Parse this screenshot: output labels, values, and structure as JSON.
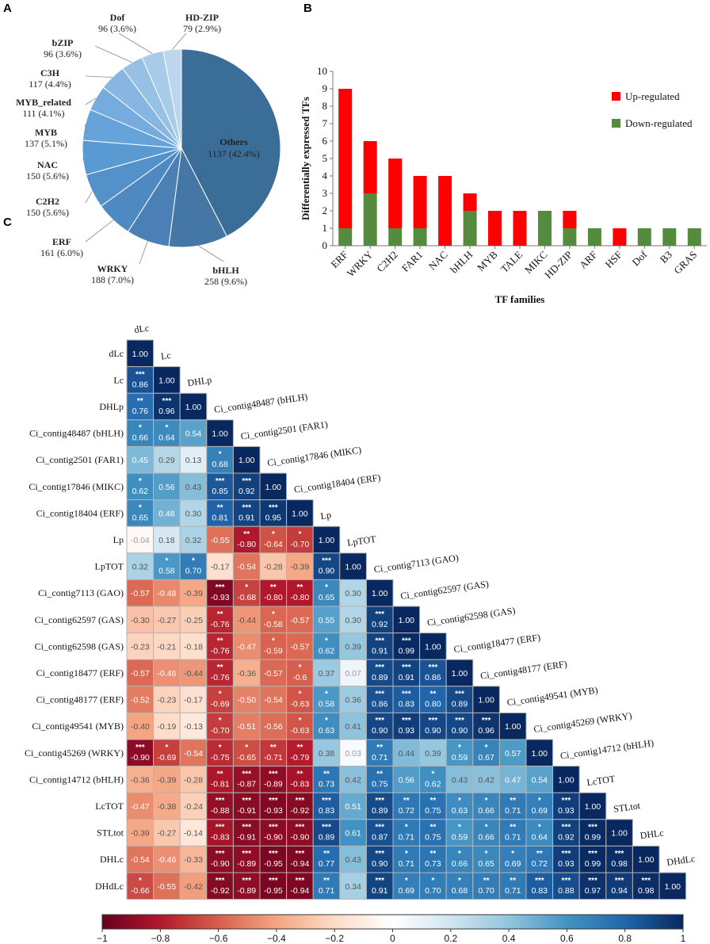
{
  "panels": {
    "a": "A",
    "b": "B",
    "c": "C"
  },
  "chart_data": [
    {
      "type": "pie",
      "id": "A",
      "slices": [
        {
          "label": "Others",
          "value": 1137,
          "text": "1137 (42.4%)"
        },
        {
          "label": "bHLH",
          "value": 258,
          "text": "258 (9.6%)"
        },
        {
          "label": "WRKY",
          "value": 188,
          "text": "188 (7.0%)"
        },
        {
          "label": "ERF",
          "value": 161,
          "text": "161 (6.0%)"
        },
        {
          "label": "C2H2",
          "value": 150,
          "text": "150 (5.6%)"
        },
        {
          "label": "NAC",
          "value": 150,
          "text": "150 (5.6%)"
        },
        {
          "label": "MYB",
          "value": 137,
          "text": "137 (5.1%)"
        },
        {
          "label": "MYB_related",
          "value": 111,
          "text": "111 (4.1%)"
        },
        {
          "label": "C3H",
          "value": 117,
          "text": "117 (4.4%)"
        },
        {
          "label": "bZIP",
          "value": 96,
          "text": "96 (3.6%)"
        },
        {
          "label": "Dof",
          "value": 96,
          "text": "96 (3.6%)"
        },
        {
          "label": "HD-ZIP",
          "value": 79,
          "text": "79 (2.9%)"
        }
      ],
      "colors": [
        "#3b6d99",
        "#4577a6",
        "#4a80b6",
        "#4e89c2",
        "#5391cb",
        "#5a9ad3",
        "#66a3da",
        "#75acdd",
        "#86b6e1",
        "#97c0e5",
        "#a9cbea",
        "#bcd6ee"
      ]
    },
    {
      "type": "bar",
      "id": "B",
      "stacked": true,
      "categories": [
        "ERF",
        "WRKY",
        "C2H2",
        "FAR1",
        "NAC",
        "bHLH",
        "MYB",
        "TALE",
        "MIKC",
        "HD-ZIP",
        "ARF",
        "HSF",
        "Dof",
        "B3",
        "GRAS"
      ],
      "series": [
        {
          "name": "Down-regulated",
          "values": [
            1,
            3,
            1,
            1,
            0,
            2,
            0,
            0,
            2,
            1,
            1,
            0,
            1,
            1,
            1
          ],
          "color": "#558b3f"
        },
        {
          "name": "Up-regulated",
          "values": [
            8,
            3,
            4,
            3,
            4,
            1,
            2,
            2,
            0,
            1,
            0,
            1,
            0,
            0,
            0
          ],
          "color": "#ff0000"
        }
      ],
      "legend": [
        "Up-regulated",
        "Down-regulated"
      ],
      "xlabel": "TF families",
      "ylabel": "Differentially expressed TFs",
      "ylim": [
        0,
        10
      ],
      "yticks": [
        "0",
        "1",
        "2",
        "3",
        "4",
        "5",
        "6",
        "7",
        "8",
        "9",
        "10"
      ]
    },
    {
      "type": "heatmap",
      "id": "C",
      "variables": [
        "dLc",
        "Lc",
        "DHLp",
        "Ci_contig48487 (bHLH)",
        "Ci_contig2501 (FAR1)",
        "Ci_contig17846 (MIKC)",
        "Ci_contig18404 (ERF)",
        "Lp",
        "LpTOT",
        "Ci_contig7113 (GAO)",
        "Ci_contig62597 (GAS)",
        "Ci_contig62598 (GAS)",
        "Ci_contig18477 (ERF)",
        "Ci_contig48177 (ERF)",
        "Ci_contig49541 (MYB)",
        "Ci_contig45269 (WRKY)",
        "Ci_contig14712 (bHLH)",
        "LcTOT",
        "STLtot",
        "DHLc",
        "DHdLc"
      ],
      "values": [
        [
          "1.00"
        ],
        [
          "0.86",
          "1.00"
        ],
        [
          "0.76",
          "0.96",
          "1.00"
        ],
        [
          "0.66",
          "0.64",
          "0.54",
          "1.00"
        ],
        [
          "0.45",
          "0.29",
          "0.13",
          "0.68",
          "1.00"
        ],
        [
          "0.62",
          "0.56",
          "0.43",
          "0.85",
          "0.92",
          "1.00"
        ],
        [
          "0.65",
          "0.48",
          "0.30",
          "0.81",
          "0.91",
          "0.95",
          "1.00"
        ],
        [
          "-0.04",
          "0.18",
          "0.32",
          "-0.55",
          "-0.80",
          "-0.64",
          "-0.70",
          "1.00"
        ],
        [
          "0.32",
          "0.58",
          "0.70",
          "-0.17",
          "-0.54",
          "-0.28",
          "-0.39",
          "0.90",
          "1.00"
        ],
        [
          "-0.57",
          "-0.48",
          "-0.39",
          "-0.93",
          "-0.68",
          "-0.80",
          "-0.80",
          "0.65",
          "0.30",
          "1.00"
        ],
        [
          "-0.30",
          "-0.27",
          "-0.25",
          "-0.76",
          "-0.44",
          "-0.58",
          "-0.57",
          "0.55",
          "0.30",
          "0.92",
          "1.00"
        ],
        [
          "-0.23",
          "-0.21",
          "-0.18",
          "-0.76",
          "-0.47",
          "-0.59",
          "-0.57",
          "0.62",
          "0.39",
          "0.91",
          "0.99",
          "1.00"
        ],
        [
          "-0.57",
          "-0.46",
          "-0.44",
          "-0.76",
          "-0.36",
          "-0.57",
          "-0.6",
          "0.37",
          "0.07",
          "0.89",
          "0.91",
          "0.86",
          "1.00"
        ],
        [
          "-0.52",
          "-0.23",
          "-0.17",
          "-0.69",
          "-0.50",
          "-0.54",
          "-0.63",
          "0.58",
          "0.36",
          "0.86",
          "0.83",
          "0.80",
          "0.89",
          "1.00"
        ],
        [
          "-0.40",
          "-0.19",
          "-0.13",
          "-0.70",
          "-0.51",
          "-0.56",
          "-0.63",
          "0.63",
          "0.41",
          "0.90",
          "0.93",
          "0.90",
          "0.90",
          "0.96",
          "1.00"
        ],
        [
          "-0.90",
          "-0.69",
          "-0.54",
          "-0.75",
          "-0.65",
          "-0.71",
          "-0.79",
          "0.38",
          "0.03",
          "0.71",
          "0.44",
          "0.39",
          "0.59",
          "0.67",
          "0.57",
          "1.00"
        ],
        [
          "-0.36",
          "-0.39",
          "-0.28",
          "-0.81",
          "-0.87",
          "-0.89",
          "-0.83",
          "0.73",
          "0.42",
          "0.75",
          "0.56",
          "0.62",
          "0.43",
          "0.42",
          "0.47",
          "0.54",
          "1.00"
        ],
        [
          "-0.47",
          "-0.38",
          "-0.24",
          "-0.88",
          "-0.91",
          "-0.93",
          "-0.92",
          "0.83",
          "0.51",
          "0.89",
          "0.72",
          "0.75",
          "0.63",
          "0.66",
          "0.71",
          "0.69",
          "0.93",
          "1.00"
        ],
        [
          "-0.39",
          "-0.27",
          "-0.14",
          "-0.83",
          "-0.91",
          "-0.90",
          "-0.90",
          "0.89",
          "0.61",
          "0.87",
          "0.71",
          "0.75",
          "0.59",
          "0.66",
          "0.71",
          "0.64",
          "0.92",
          "0.99",
          "1.00"
        ],
        [
          "-0.54",
          "-0.46",
          "-0.33",
          "-0.90",
          "-0.89",
          "-0.95",
          "-0.94",
          "0.77",
          "0.43",
          "0.90",
          "0.71",
          "0.73",
          "0.66",
          "0.65",
          "0.69",
          "0.72",
          "0.93",
          "0.99",
          "0.98",
          "1.00"
        ],
        [
          "-0.66",
          "-0.55",
          "-0.42",
          "-0.92",
          "-0.89",
          "-0.95",
          "-0.94",
          "0.71",
          "0.34",
          "0.91",
          "0.69",
          "0.70",
          "0.68",
          "0.70",
          "0.71",
          "0.83",
          "0.88",
          "0.97",
          "0.94",
          "0.98",
          "1.00"
        ]
      ],
      "significance": [
        [
          ""
        ],
        [
          "***",
          ""
        ],
        [
          "**",
          "***",
          ""
        ],
        [
          "*",
          "*",
          "",
          ""
        ],
        [
          "",
          "",
          "",
          "*",
          ""
        ],
        [
          "*",
          "",
          "",
          "***",
          "***",
          ""
        ],
        [
          "*",
          "",
          "",
          "**",
          "***",
          "***",
          ""
        ],
        [
          "",
          "",
          "",
          "",
          "**",
          "*",
          "*",
          ""
        ],
        [
          "",
          "*",
          "*",
          "",
          "",
          "",
          "",
          "***",
          ""
        ],
        [
          "",
          "",
          "",
          "***",
          "*",
          "**",
          "**",
          "*",
          "",
          ""
        ],
        [
          "",
          "",
          "",
          "**",
          "",
          "*",
          "",
          "",
          "",
          "***",
          ""
        ],
        [
          "",
          "",
          "",
          "**",
          "",
          "*",
          "",
          "*",
          "",
          "***",
          "***",
          ""
        ],
        [
          "",
          "",
          "",
          "**",
          "",
          "",
          "*",
          "",
          "",
          "***",
          "***",
          "***",
          ""
        ],
        [
          "",
          "",
          "",
          "*",
          "",
          "",
          "*",
          "*",
          "",
          "***",
          "***",
          "**",
          "***",
          ""
        ],
        [
          "",
          "",
          "",
          "*",
          "",
          "",
          "*",
          "*",
          "",
          "***",
          "***",
          "***",
          "***",
          "***",
          ""
        ],
        [
          "***",
          "*",
          "",
          "*",
          "*",
          "**",
          "**",
          "",
          "",
          "**",
          "",
          "",
          "*",
          "*",
          "",
          ""
        ],
        [
          "",
          "",
          "",
          "**",
          "***",
          "***",
          "**",
          "**",
          "",
          "**",
          "",
          "*",
          "",
          "",
          "",
          "",
          ""
        ],
        [
          "",
          "",
          "",
          "***",
          "***",
          "***",
          "***",
          "***",
          "",
          "***",
          "**",
          "**",
          "*",
          "*",
          "**",
          "*",
          "***",
          ""
        ],
        [
          "",
          "",
          "",
          "***",
          "***",
          "***",
          "***",
          "***",
          "",
          "***",
          "*",
          "**",
          "*",
          "*",
          "**",
          "*",
          "***",
          "***",
          ""
        ],
        [
          "",
          "",
          "",
          "***",
          "***",
          "***",
          "***",
          "**",
          "",
          "***",
          "*",
          "**",
          "*",
          "*",
          "*",
          "**",
          "***",
          "***",
          "***",
          ""
        ],
        [
          "*",
          "",
          "",
          "***",
          "***",
          "***",
          "***",
          "**",
          "",
          "***",
          "*",
          "*",
          "*",
          "**",
          "**",
          "***",
          "***",
          "***",
          "***",
          "***",
          ""
        ]
      ],
      "colorbar": {
        "min": -1,
        "max": 1,
        "ticks": [
          "−1",
          "−0.8",
          "−0.6",
          "−0.4",
          "−0.2",
          "0",
          "0.2",
          "0.4",
          "0.6",
          "0.8",
          "1"
        ]
      }
    }
  ]
}
